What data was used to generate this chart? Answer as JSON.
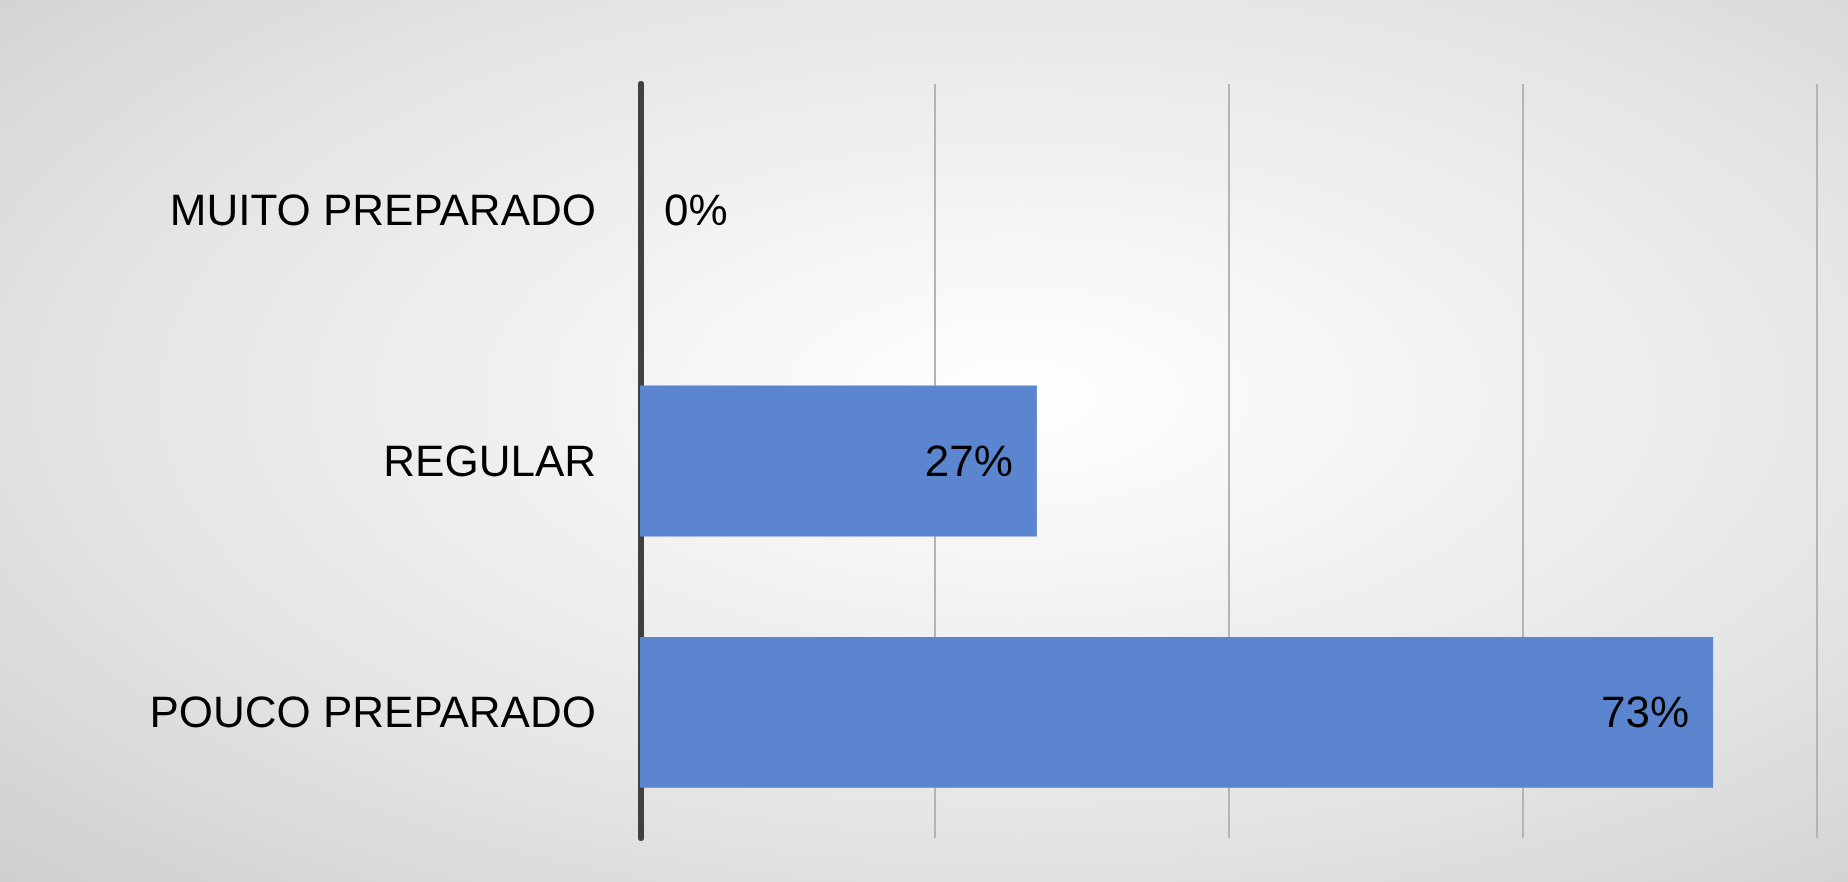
{
  "chart_data": {
    "type": "bar",
    "orientation": "horizontal",
    "categories": [
      "MUITO PREPARADO",
      "REGULAR",
      "POUCO PREPARADO"
    ],
    "values": [
      0,
      27,
      73
    ],
    "color": "#5b86cf",
    "value_labels": [
      "0%",
      "27%",
      "73%"
    ],
    "xlim": [
      0,
      80
    ],
    "xticks": [
      {
        "value": 0,
        "label": null
      },
      {
        "value": 20,
        "label": null
      },
      {
        "value": 40,
        "label": null
      },
      {
        "value": 60,
        "label": null
      },
      {
        "value": 80,
        "label": null
      }
    ],
    "tick_labels": "y",
    "grid": "x"
  }
}
